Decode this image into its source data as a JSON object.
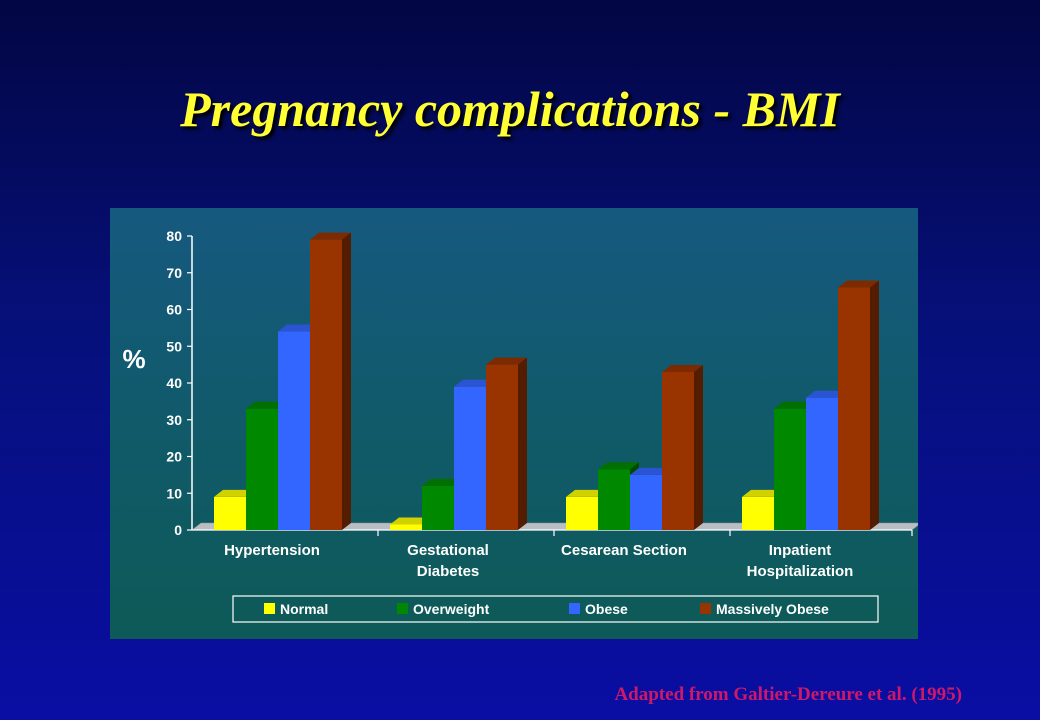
{
  "slide": {
    "title": "Pregnancy complications - BMI",
    "source": "Adapted from Galtier-Dereure et al. (1995)"
  },
  "colors": {
    "background": "#06107a",
    "title": "#ffff33",
    "source": "#d0186a",
    "panel": "#0f5a66"
  },
  "chart_data": {
    "type": "bar",
    "title": "",
    "ylabel": "%",
    "xlabel": "",
    "ylim": [
      0,
      80
    ],
    "yticks": [
      0,
      10,
      20,
      30,
      40,
      50,
      60,
      70,
      80
    ],
    "categories": [
      [
        "Hypertension"
      ],
      [
        "Gestational",
        "Diabetes"
      ],
      [
        "Cesarean Section"
      ],
      [
        "Inpatient",
        "Hospitalization"
      ]
    ],
    "series": [
      {
        "name": "Normal",
        "color": "#ffff00",
        "values": [
          9,
          1.5,
          9,
          9
        ]
      },
      {
        "name": "Overweight",
        "color": "#008800",
        "values": [
          33,
          12,
          16.5,
          33
        ]
      },
      {
        "name": "Obese",
        "color": "#3366ff",
        "values": [
          54,
          39,
          15,
          36
        ]
      },
      {
        "name": "Massively Obese",
        "color": "#993300",
        "values": [
          79,
          45,
          43,
          66
        ]
      }
    ],
    "legend_position": "bottom",
    "bar_style": "3d"
  }
}
